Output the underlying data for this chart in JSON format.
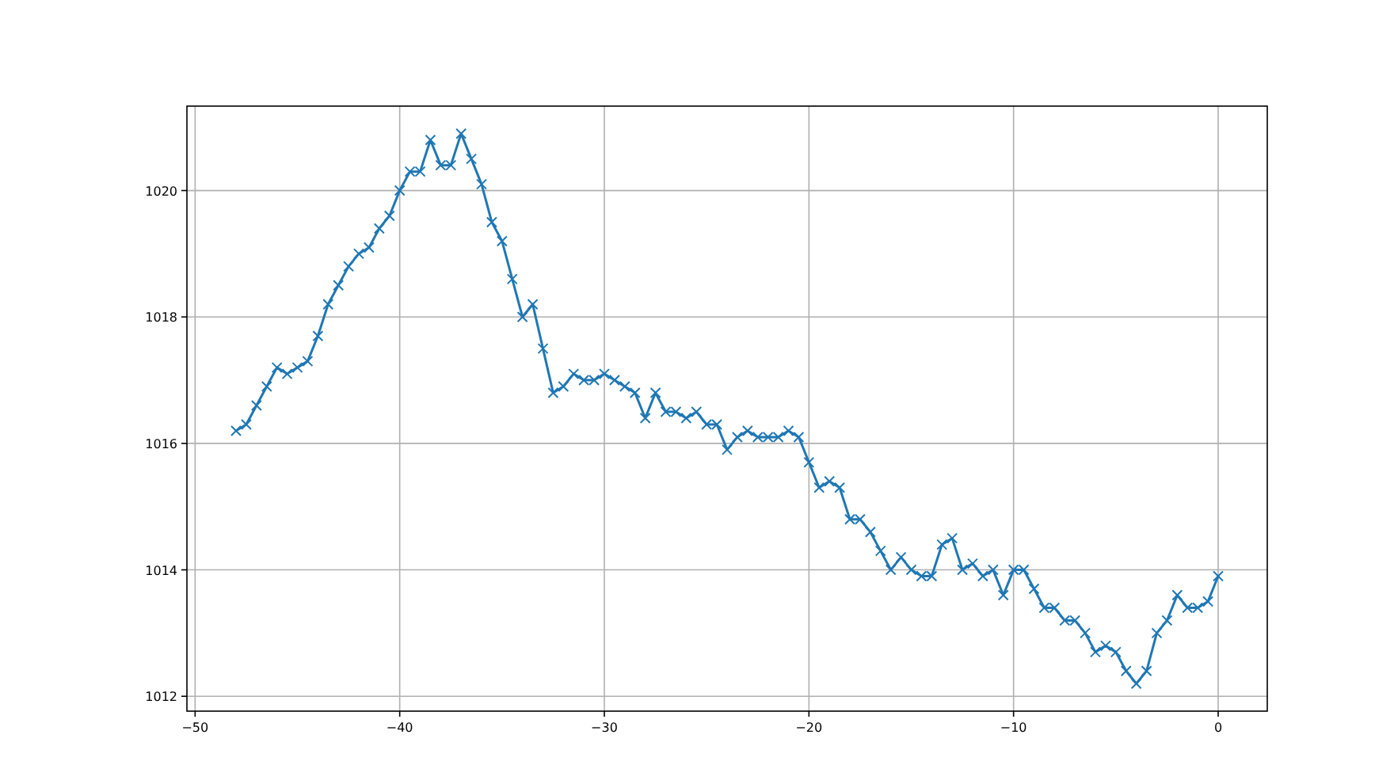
{
  "chart_data": {
    "type": "line",
    "x": [
      -48,
      -47.5,
      -47,
      -46.5,
      -46,
      -45.5,
      -45,
      -44.5,
      -44,
      -43.5,
      -43,
      -42.5,
      -42,
      -41.5,
      -41,
      -40.5,
      -40,
      -39.5,
      -39,
      -38.5,
      -38,
      -37.5,
      -37,
      -36.5,
      -36,
      -35.5,
      -35,
      -34.5,
      -34,
      -33.5,
      -33,
      -32.5,
      -32,
      -31.5,
      -31,
      -30.5,
      -30,
      -29.5,
      -29,
      -28.5,
      -28,
      -27.5,
      -27,
      -26.5,
      -26,
      -25.5,
      -25,
      -24.5,
      -24,
      -23.5,
      -23,
      -22.5,
      -22,
      -21.5,
      -21,
      -20.5,
      -20,
      -19.5,
      -19,
      -18.5,
      -18,
      -17.5,
      -17,
      -16.5,
      -16,
      -15.5,
      -15,
      -14.5,
      -14,
      -13.5,
      -13,
      -12.5,
      -12,
      -11.5,
      -11,
      -10.5,
      -10,
      -9.5,
      -9,
      -8.5,
      -8,
      -7.5,
      -7,
      -6.5,
      -6,
      -5.5,
      -5,
      -4.5,
      -4,
      -3.5,
      -3,
      -2.5,
      -2,
      -1.5,
      -1,
      -0.5,
      0
    ],
    "series": [
      {
        "color": "#1f77b4",
        "values": [
          1016.2,
          1016.3,
          1016.6,
          1016.9,
          1017.2,
          1017.1,
          1017.2,
          1017.3,
          1017.7,
          1018.2,
          1018.5,
          1018.8,
          1019.0,
          1019.1,
          1019.4,
          1019.6,
          1020.0,
          1020.3,
          1020.3,
          1020.8,
          1020.4,
          1020.4,
          1020.9,
          1020.5,
          1020.1,
          1019.5,
          1019.2,
          1018.6,
          1018.0,
          1018.2,
          1017.5,
          1016.8,
          1016.9,
          1017.1,
          1017.0,
          1017.0,
          1017.1,
          1017.0,
          1016.9,
          1016.8,
          1016.4,
          1016.8,
          1016.5,
          1016.5,
          1016.4,
          1016.5,
          1016.3,
          1016.3,
          1015.9,
          1016.1,
          1016.2,
          1016.1,
          1016.1,
          1016.1,
          1016.2,
          1016.1,
          1015.7,
          1015.3,
          1015.4,
          1015.3,
          1014.8,
          1014.8,
          1014.6,
          1014.3,
          1014.0,
          1014.2,
          1014.0,
          1013.9,
          1013.9,
          1014.4,
          1014.5,
          1014.0,
          1014.1,
          1013.9,
          1014.0,
          1013.6,
          1014.0,
          1014.0,
          1013.7,
          1013.4,
          1013.4,
          1013.2,
          1013.2,
          1013.0,
          1012.7,
          1012.8,
          1012.7,
          1012.4,
          1012.2,
          1012.4,
          1013.0,
          1013.2,
          1013.6,
          1013.4,
          1013.4,
          1013.5,
          1013.9
        ]
      }
    ],
    "xlim": [
      -50.4,
      2.4
    ],
    "ylim": [
      1011.765,
      1021.335
    ],
    "xticks": [
      -50,
      -40,
      -30,
      -20,
      -10,
      0
    ],
    "yticks": [
      1012,
      1014,
      1016,
      1018,
      1020
    ],
    "grid": true,
    "marker": "cross",
    "line_style": "solid"
  }
}
